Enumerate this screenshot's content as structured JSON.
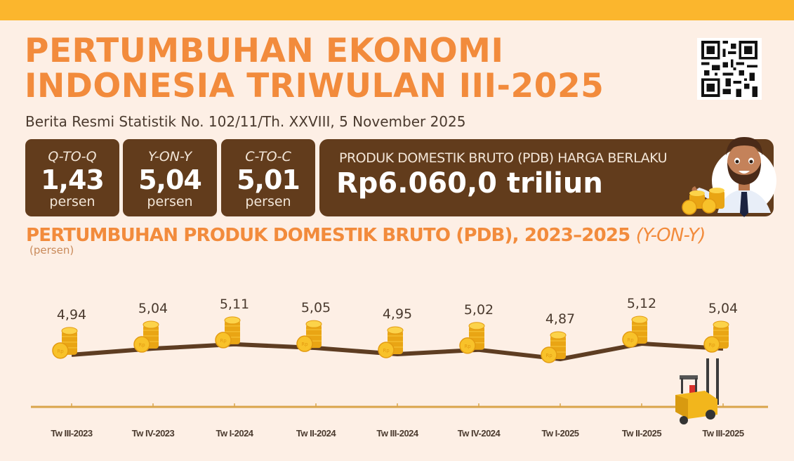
{
  "header": {
    "title_line1": "PERTUMBUHAN EKONOMI",
    "title_line2": "INDONESIA TRIWULAN III-2025",
    "subtitle": "Berita Resmi Statistik No. 102/11/Th. XXVIII, 5 November 2025",
    "qr_icon": "qr-code-icon"
  },
  "stats": [
    {
      "label": "Q-TO-Q",
      "value": "1,43",
      "unit": "persen"
    },
    {
      "label": "Y-ON-Y",
      "value": "5,04",
      "unit": "persen"
    },
    {
      "label": "C-TO-C",
      "value": "5,01",
      "unit": "persen"
    }
  ],
  "pdb": {
    "label": "PRODUK DOMESTIK BRUTO (PDB) HARGA BERLAKU",
    "value": "Rp6.060,0 triliun"
  },
  "chart_section": {
    "title": "PERTUMBUHAN PRODUK DOMESTIK BRUTO (PDB), 2023–2025",
    "title_suffix": "(Y-ON-Y)",
    "unit": "(persen)"
  },
  "colors": {
    "topbar": "#fbb62d",
    "accent_orange": "#f28b3c",
    "card_brown": "#623c1c",
    "background": "#fdefe5",
    "line": "#5e3d22",
    "axis": "#d9a44a",
    "coin": "#f5b81c"
  },
  "chart_data": {
    "type": "line",
    "title": "PERTUMBUHAN PRODUK DOMESTIK BRUTO (PDB), 2023–2025 (Y-ON-Y)",
    "xlabel": "",
    "ylabel": "persen",
    "categories": [
      "Tw III-2023",
      "Tw IV-2023",
      "Tw I-2024",
      "Tw II-2024",
      "Tw III-2024",
      "Tw IV-2024",
      "Tw I-2025",
      "Tw II-2025",
      "Tw III-2025"
    ],
    "labels": [
      "4,94",
      "5,04",
      "5,11",
      "5,05",
      "4,95",
      "5,02",
      "4,87",
      "5,12",
      "5,04"
    ],
    "series": [
      {
        "name": "PDB y-on-y (persen)",
        "values": [
          4.94,
          5.04,
          5.11,
          5.05,
          4.95,
          5.02,
          4.87,
          5.12,
          5.04
        ]
      }
    ],
    "grid": false,
    "legend": "none",
    "marker": "coin-stack"
  }
}
